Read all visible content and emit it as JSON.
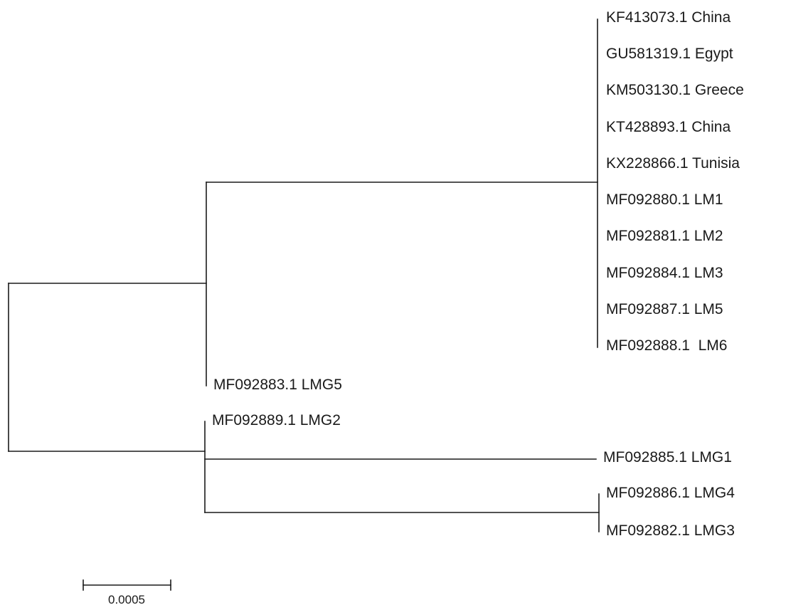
{
  "tree": {
    "leaves": [
      {
        "id": "kf413073",
        "label": "KF413073.1 China"
      },
      {
        "id": "gu581319",
        "label": "GU581319.1 Egypt"
      },
      {
        "id": "km503130",
        "label": "KM503130.1 Greece"
      },
      {
        "id": "kt428893",
        "label": "KT428893.1 China"
      },
      {
        "id": "kx228866",
        "label": "KX228866.1 Tunisia"
      },
      {
        "id": "mf092880",
        "label": "MF092880.1 LM1"
      },
      {
        "id": "mf092881",
        "label": "MF092881.1 LM2"
      },
      {
        "id": "mf092884",
        "label": "MF092884.1 LM3"
      },
      {
        "id": "mf092887",
        "label": "MF092887.1 LM5"
      },
      {
        "id": "mf092888",
        "label": "MF092888.1  LM6"
      },
      {
        "id": "mf092883",
        "label": "MF092883.1 LMG5"
      },
      {
        "id": "mf092889",
        "label": "MF092889.1 LMG2"
      },
      {
        "id": "mf092885",
        "label": "MF092885.1 LMG1"
      },
      {
        "id": "mf092886",
        "label": "MF092886.1 LMG4"
      },
      {
        "id": "mf092882",
        "label": "MF092882.1 LMG3"
      }
    ],
    "scale_bar": {
      "value": "0.0005"
    }
  }
}
